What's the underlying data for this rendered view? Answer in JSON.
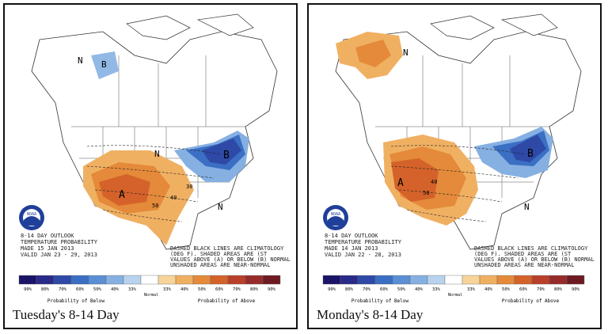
{
  "panels": [
    {
      "caption": "Tuesday's 8-14 Day",
      "outlook": {
        "line1": "8-14 DAY OUTLOOK",
        "line2": "TEMPERATURE PROBABILITY",
        "line3": "MADE   15 JAN 2013",
        "line4": "VALID  JAN 23 - 29, 2013"
      },
      "note": {
        "line1": "DASHED BLACK LINES ARE CLIMATOLOGY",
        "line2": "(DEG F). SHADED AREAS ARE (ST",
        "line3": "VALUES ABOVE (A) OR BELOW (B) NORMAL",
        "line4": "UNSHADED AREAS ARE NEAR-NORMAL"
      }
    },
    {
      "caption": "Monday's 8-14 Day",
      "outlook": {
        "line1": "8-14 DAY OUTLOOK",
        "line2": "TEMPERATURE PROBABILITY",
        "line3": "MADE   14 JAN 2013",
        "line4": "VALID  JAN 22 - 28, 2013"
      },
      "note": {
        "line1": "DASHED BLACK LINES ARE CLIMATOLOGY",
        "line2": "(DEG F). SHADED AREAS ARE (ST",
        "line3": "VALUES ABOVE (A) OR BELOW (B) NORMAL",
        "line4": "UNSHADED AREAS ARE NEAR-NORMAL"
      }
    }
  ],
  "map_labels": {
    "above": "A",
    "below": "B",
    "normal": "N",
    "contours": [
      "30",
      "40",
      "50",
      "40",
      "50"
    ]
  },
  "noaa_logo": "NOAA",
  "legend": {
    "below_label": "Probability of Below",
    "normal_label": "Normal",
    "above_label": "Probability of Above",
    "below_values": [
      "90%",
      "80%",
      "70%",
      "60%",
      "50%",
      "40%",
      "33%"
    ],
    "normal_value": "",
    "above_values": [
      "33%",
      "40%",
      "50%",
      "60%",
      "70%",
      "80%",
      "90%"
    ],
    "below_colors": [
      "#1a1466",
      "#2a2a8a",
      "#2e49a6",
      "#3b6fc4",
      "#5a8fd6",
      "#86b0e2",
      "#b9d2ee"
    ],
    "normal_color": "#ffffff",
    "above_colors": [
      "#f6d49a",
      "#f0b062",
      "#e48a3a",
      "#d4622a",
      "#b8402a",
      "#962c2a",
      "#6e1a22"
    ]
  },
  "colors": {
    "above_light": "#f0b062",
    "above_mid": "#e48a3a",
    "above_dark": "#d4622a",
    "below_light": "#86b0e2",
    "below_mid": "#3b6fc4",
    "below_dark": "#2e49a6"
  }
}
